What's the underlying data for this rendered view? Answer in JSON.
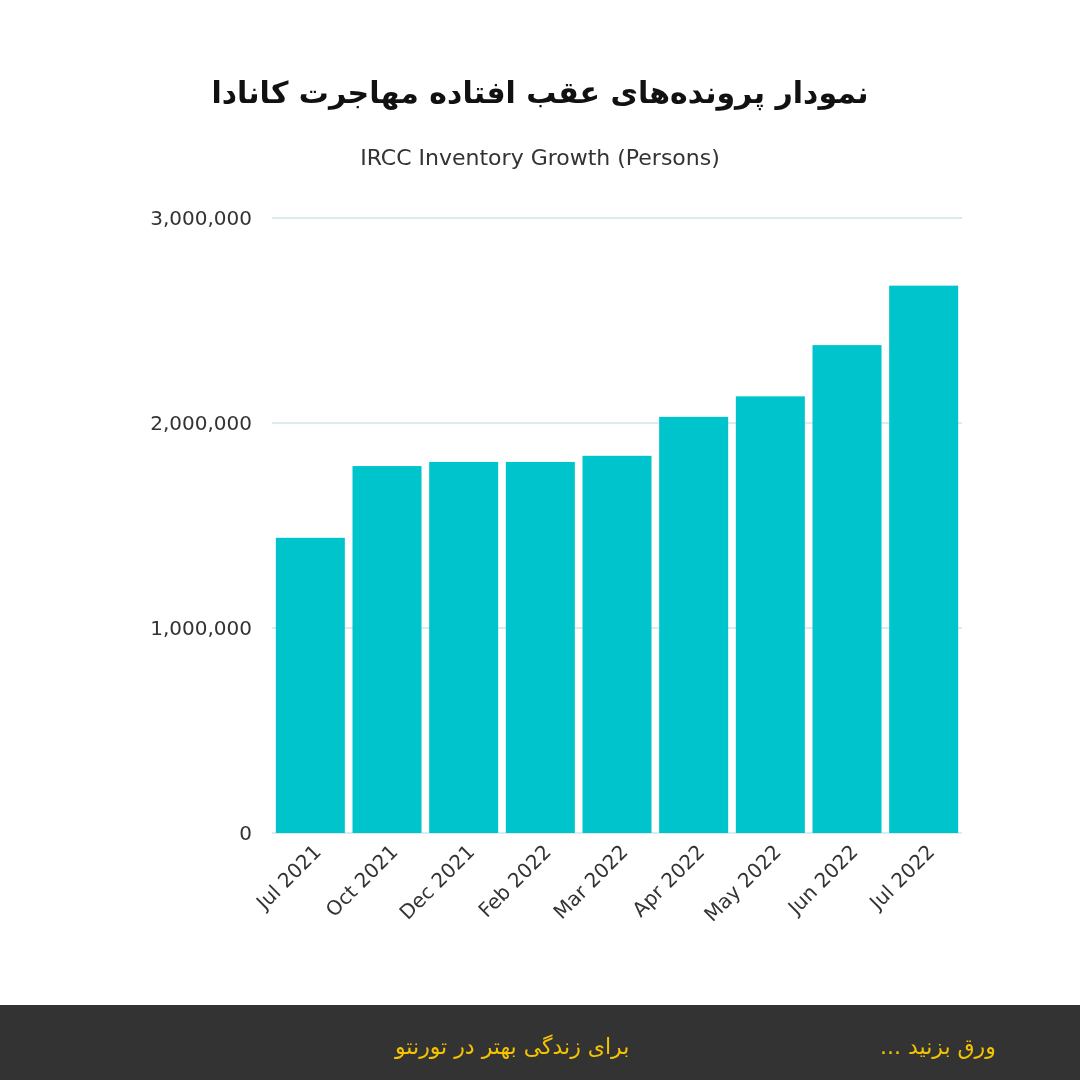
{
  "chart_data": {
    "type": "bar",
    "title": "نمودار پرونده‌های عقب افتاده مهاجرت کانادا",
    "subtitle": "IRCC Inventory Growth (Persons)",
    "categories": [
      "Jul 2021",
      "Oct 2021",
      "Dec 2021",
      "Feb 2022",
      "Mar 2022",
      "Apr 2022",
      "May 2022",
      "Jun 2022",
      "Jul 2022"
    ],
    "values": [
      1440000,
      1790000,
      1810000,
      1810000,
      1840000,
      2030000,
      2130000,
      2380000,
      2670000
    ],
    "color": "#00c4cc",
    "ylim": [
      0,
      3000000
    ],
    "yticks": [
      {
        "value": 0,
        "label": "0"
      },
      {
        "value": 1000000,
        "label": "1,000,000"
      },
      {
        "value": 2000000,
        "label": "2,000,000"
      },
      {
        "value": 3000000,
        "label": "3,000,000"
      }
    ],
    "grid": "y",
    "annotations": [
      "ورق بزنید ...",
      "برای زندگی بهتر در تورنتو"
    ]
  }
}
